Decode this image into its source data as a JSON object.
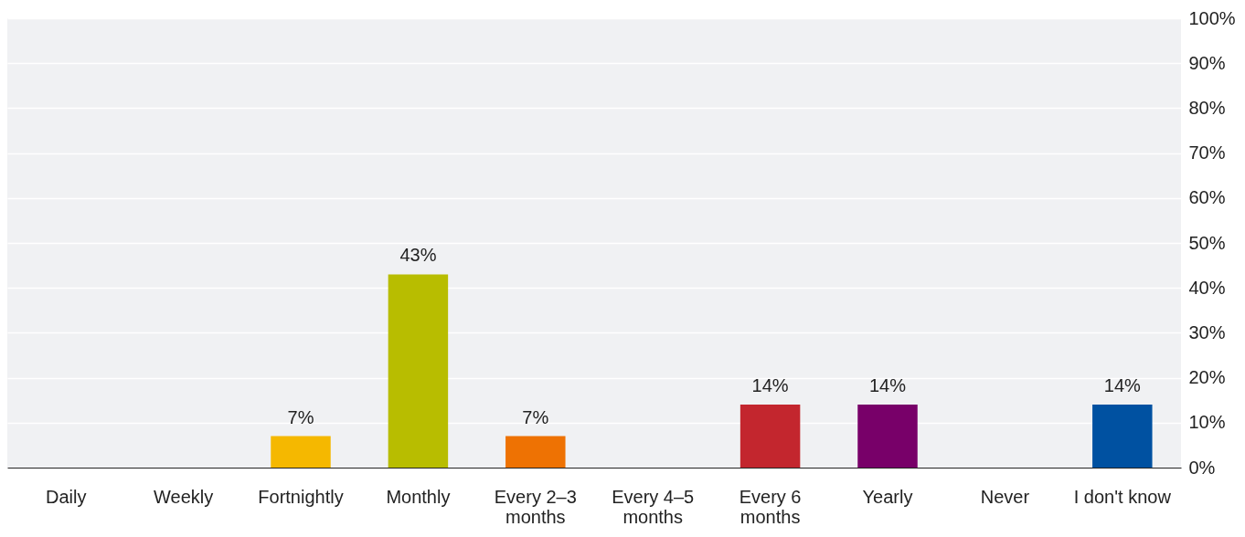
{
  "chart_data": {
    "type": "bar",
    "categories": [
      "Daily",
      "Weekly",
      "Fortnightly",
      "Monthly",
      "Every 2–3 months",
      "Every 4–5 months",
      "Every 6 months",
      "Yearly",
      "Never",
      "I don't know"
    ],
    "values": [
      0,
      0,
      7,
      43,
      7,
      0,
      14,
      14,
      0,
      14
    ],
    "colors": [
      "#cccccc",
      "#cccccc",
      "#f5b800",
      "#b8bd00",
      "#ee7203",
      "#cccccc",
      "#c3262e",
      "#780069",
      "#cccccc",
      "#0051a1"
    ],
    "value_labels": [
      null,
      null,
      "7%",
      "43%",
      "7%",
      null,
      "14%",
      "14%",
      null,
      "14%"
    ],
    "ylim": [
      0,
      100
    ],
    "yticks": [
      {
        "value": 0,
        "label": "0%"
      },
      {
        "value": 10,
        "label": "10%"
      },
      {
        "value": 20,
        "label": "20%"
      },
      {
        "value": 30,
        "label": "30%"
      },
      {
        "value": 40,
        "label": "40%"
      },
      {
        "value": 50,
        "label": "50%"
      },
      {
        "value": 60,
        "label": "60%"
      },
      {
        "value": 70,
        "label": "70%"
      },
      {
        "value": 80,
        "label": "80%"
      },
      {
        "value": 90,
        "label": "90%"
      },
      {
        "value": 100,
        "label": "100%"
      }
    ],
    "grid": "y"
  }
}
